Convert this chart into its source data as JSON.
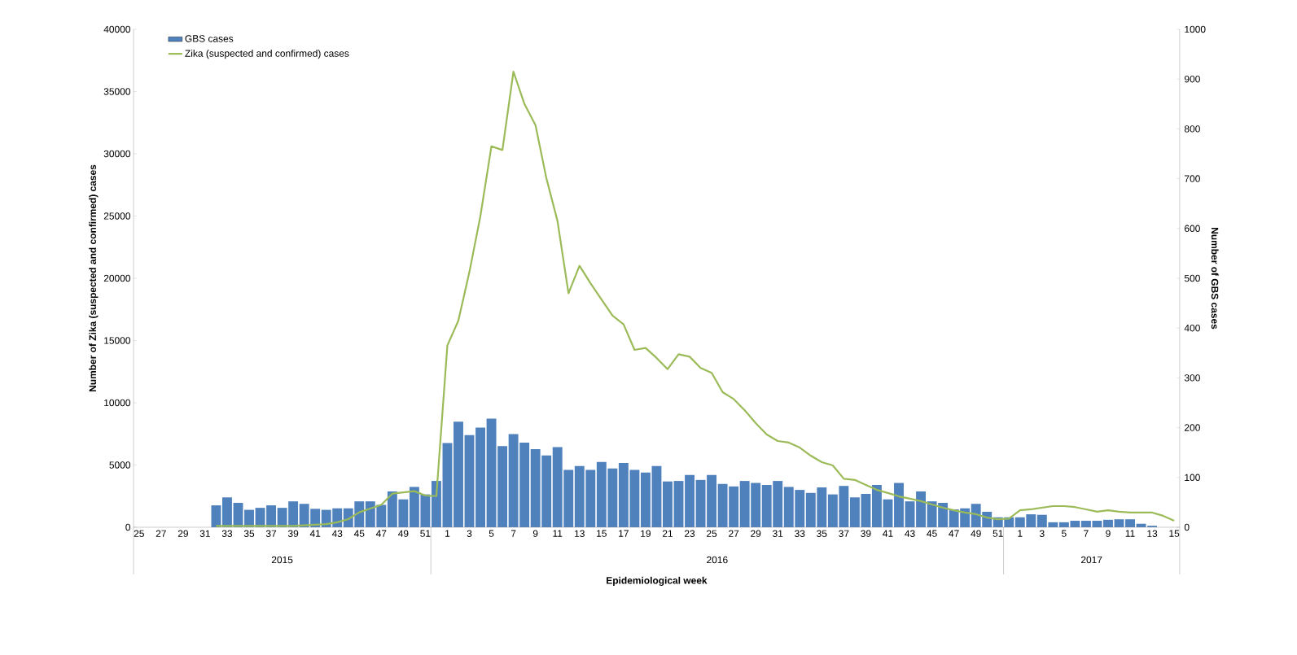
{
  "chart_data": {
    "type": "bar",
    "categories": [
      "25",
      null,
      "27",
      null,
      "29",
      null,
      "31",
      null,
      "33",
      null,
      "35",
      null,
      "37",
      null,
      "39",
      null,
      "41",
      null,
      "43",
      null,
      "45",
      null,
      "47",
      null,
      "49",
      null,
      "51",
      null,
      "1",
      null,
      "3",
      null,
      "5",
      null,
      "7",
      null,
      "9",
      null,
      "11",
      null,
      "13",
      null,
      "15",
      null,
      "17",
      null,
      "19",
      null,
      "21",
      null,
      "23",
      null,
      "25",
      null,
      "27",
      null,
      "29",
      null,
      "31",
      null,
      "33",
      null,
      "35",
      null,
      "37",
      null,
      "39",
      null,
      "41",
      null,
      "43",
      null,
      "45",
      null,
      "47",
      null,
      "49",
      null,
      "51",
      null,
      "1",
      null,
      "3",
      null,
      "5",
      null,
      "7",
      null,
      "9",
      null,
      "11",
      null,
      "13",
      null,
      "15"
    ],
    "series": [
      {
        "name": "GBS cases",
        "axis": "y2",
        "color": "#4f81bd",
        "values": [
          null,
          null,
          null,
          null,
          null,
          null,
          null,
          44,
          60,
          49,
          35,
          39,
          44,
          39,
          52,
          47,
          37,
          35,
          38,
          38,
          52,
          52,
          45,
          72,
          56,
          81,
          66,
          93,
          169,
          212,
          185,
          200,
          218,
          163,
          187,
          170,
          157,
          144,
          161,
          115,
          123,
          115,
          131,
          118,
          129,
          115,
          110,
          123,
          92,
          93,
          105,
          95,
          105,
          87,
          82,
          93,
          89,
          85,
          93,
          81,
          75,
          69,
          80,
          66,
          83,
          60,
          67,
          85,
          56,
          89,
          52,
          72,
          52,
          49,
          36,
          38,
          47,
          31,
          20,
          20,
          20,
          26,
          25,
          10,
          10,
          13,
          13,
          13,
          15,
          16,
          16,
          7,
          3,
          null,
          null
        ]
      },
      {
        "name": "Zika (suspected and confirmed) cases",
        "type": "line",
        "axis": "y",
        "color": "#9bbb59",
        "values": [
          null,
          null,
          null,
          null,
          null,
          null,
          null,
          100,
          100,
          100,
          100,
          100,
          100,
          100,
          100,
          150,
          200,
          250,
          400,
          650,
          1200,
          1500,
          1800,
          2700,
          2800,
          2900,
          2550,
          2500,
          14600,
          16600,
          20500,
          25000,
          30600,
          30300,
          36600,
          34000,
          32300,
          28000,
          24600,
          18800,
          21000,
          19600,
          18300,
          17000,
          16300,
          14250,
          14400,
          13600,
          12700,
          13900,
          13700,
          12800,
          12400,
          10850,
          10300,
          9400,
          8370,
          7450,
          6930,
          6800,
          6400,
          5750,
          5230,
          4970,
          3900,
          3800,
          3400,
          3000,
          2750,
          2480,
          2300,
          2100,
          1830,
          1570,
          1360,
          1180,
          1050,
          780,
          650,
          700,
          1360,
          1440,
          1570,
          1700,
          1700,
          1620,
          1440,
          1250,
          1360,
          1250,
          1180,
          1180,
          1180,
          920,
          520
        ]
      }
    ],
    "xlabel": "Epidemiological week",
    "ylabel": "Number of Zika (suspected and confirmed) cases",
    "y2label": "Number of GBS cases",
    "ylim": [
      0,
      40000
    ],
    "yticks": [
      0,
      5000,
      10000,
      15000,
      20000,
      25000,
      30000,
      35000,
      40000
    ],
    "y2lim": [
      0,
      1000
    ],
    "y2ticks": [
      0,
      100,
      200,
      300,
      400,
      500,
      600,
      700,
      800,
      900,
      1000
    ],
    "annotations": [
      "2015",
      "2016",
      "2017"
    ],
    "legend": "top left"
  }
}
